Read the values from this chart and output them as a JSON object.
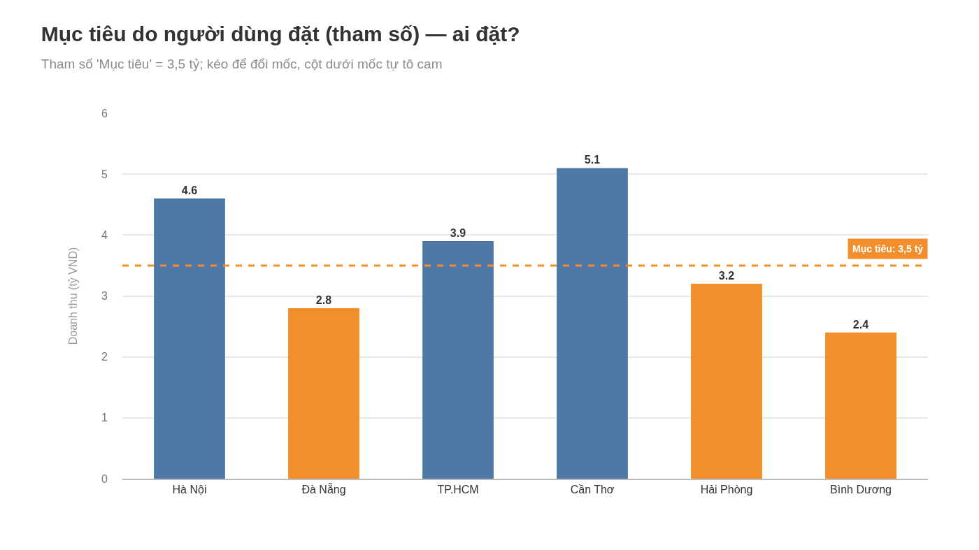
{
  "chart_data": {
    "type": "bar",
    "title": "Mục tiêu do người dùng đặt (tham số) — ai đặt?",
    "subtitle": "Tham số 'Mục tiêu' = 3,5 tỷ; kéo để đổi mốc, cột dưới mốc tự tô cam",
    "ylabel": "Doanh thu (tỷ VND)",
    "categories": [
      "Hà Nội",
      "Đà Nẵng",
      "TP.HCM",
      "Cần Thơ",
      "Hải Phòng",
      "Bình Dương"
    ],
    "values": [
      4.6,
      2.8,
      3.9,
      5.1,
      3.2,
      2.4
    ],
    "colors": [
      "#4e79a7",
      "#f28e2b",
      "#4e79a7",
      "#4e79a7",
      "#f28e2b",
      "#f28e2b"
    ],
    "data_labels": true,
    "ylim": [
      0,
      6
    ],
    "yticks": [
      0,
      1,
      2,
      3,
      4,
      5,
      6
    ],
    "grid": "y",
    "ref_lines": [
      {
        "axis": "y",
        "value": 3.5,
        "label": "Mục tiêu: 3,5 tỷ",
        "color": "#f28e2b",
        "line_style": "dashed"
      }
    ]
  }
}
